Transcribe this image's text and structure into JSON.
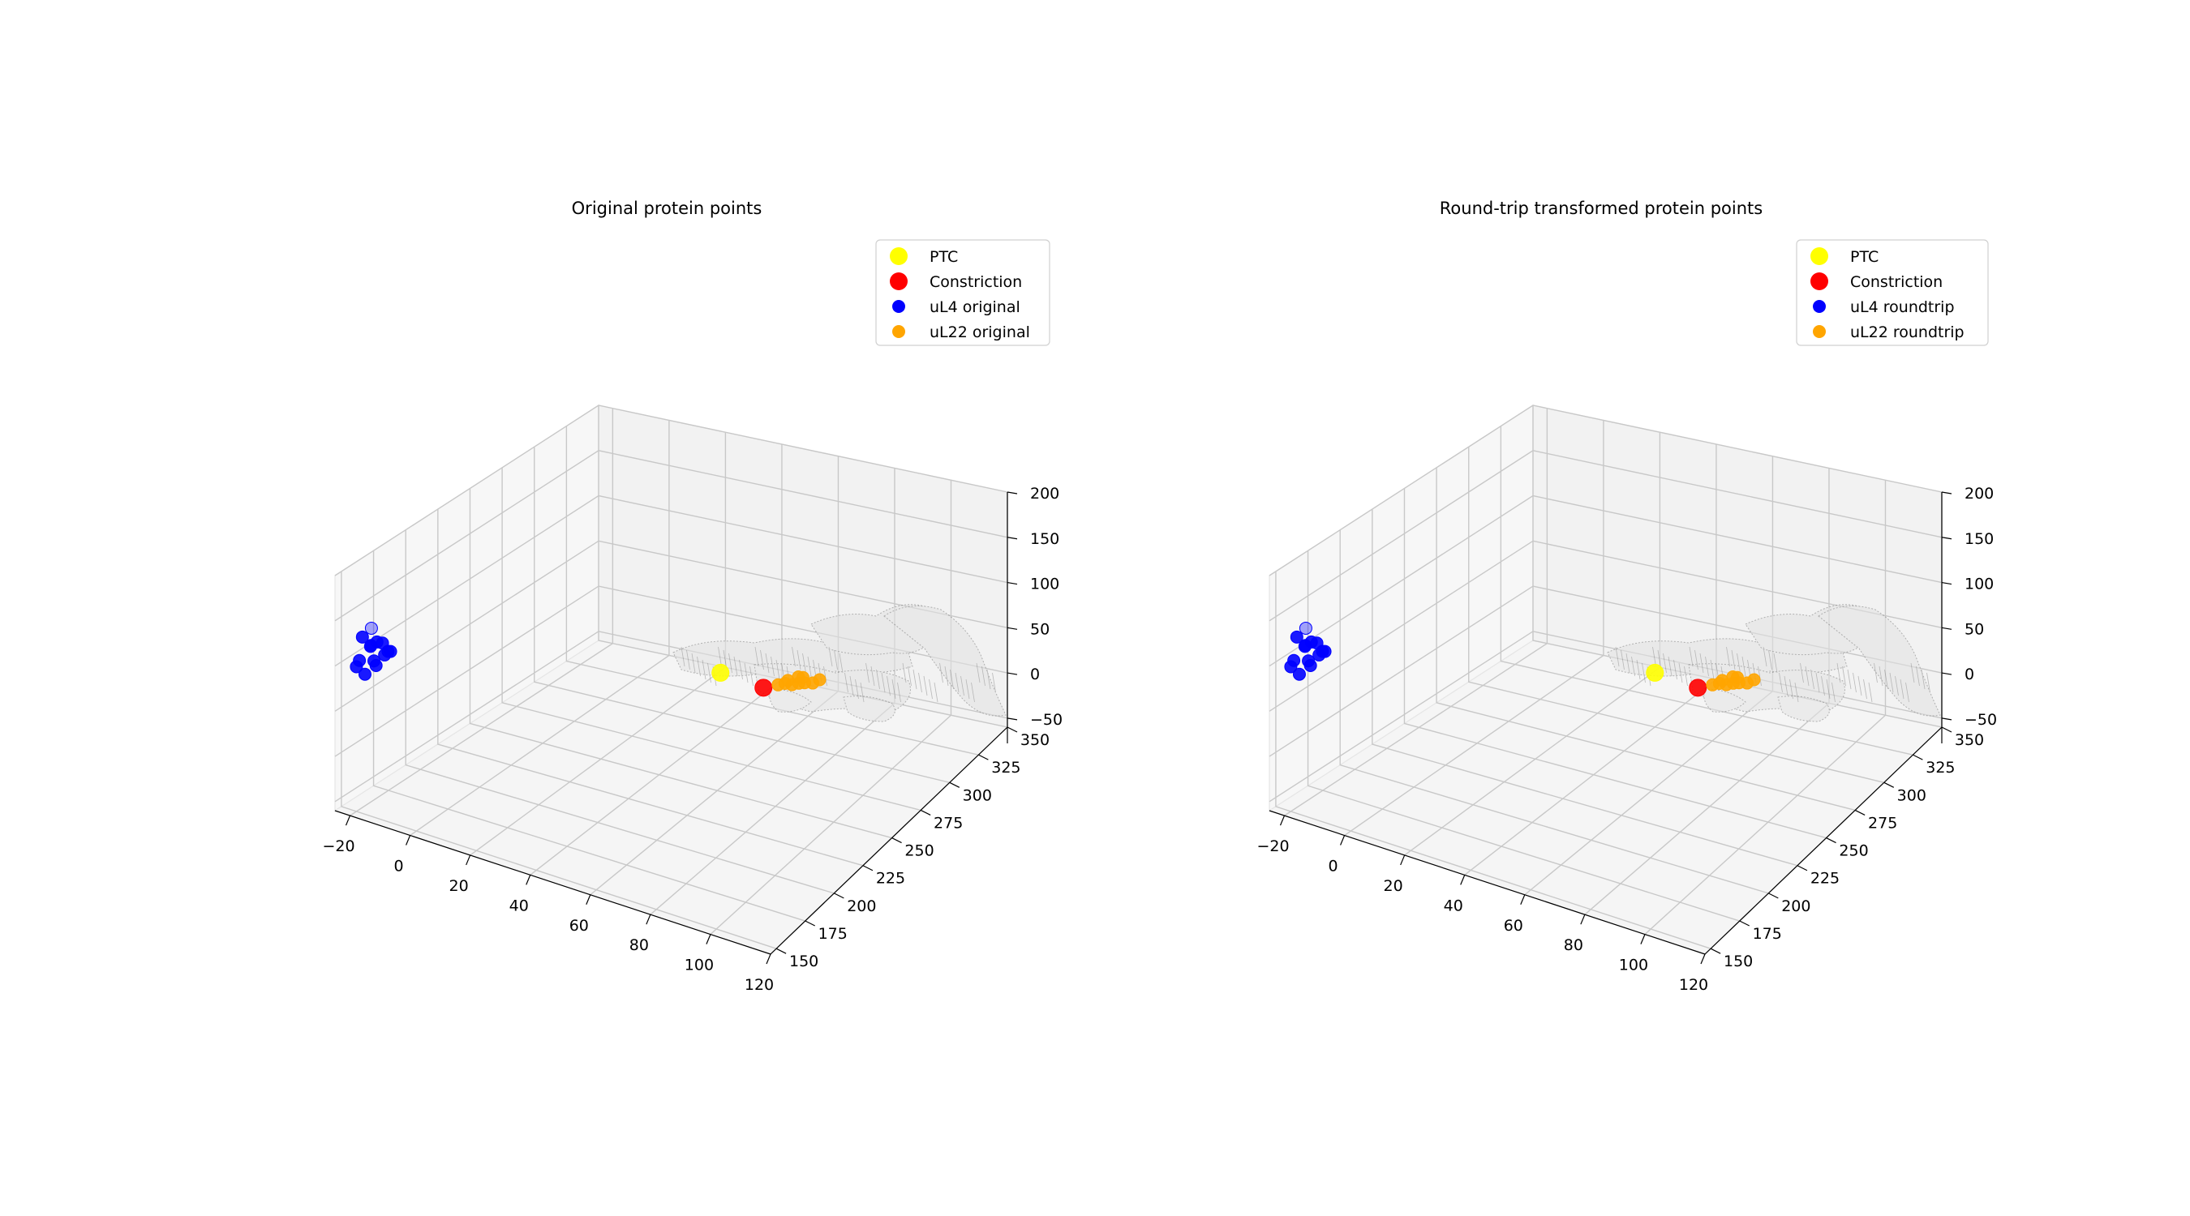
{
  "chart_data": [
    {
      "type": "scatter3d",
      "title": "Original protein points",
      "xlabel": "",
      "ylabel": "",
      "zlabel": "",
      "x_ticks": [
        "−20",
        "0",
        "20",
        "40",
        "60",
        "80",
        "100",
        "120"
      ],
      "y_ticks": [
        "150",
        "175",
        "200",
        "225",
        "250",
        "275",
        "300",
        "325",
        "350"
      ],
      "z_ticks": [
        "−50",
        "0",
        "50",
        "100",
        "150",
        "200"
      ],
      "xlim": [
        -25,
        120
      ],
      "ylim": [
        145,
        350
      ],
      "zlim": [
        -60,
        200
      ],
      "grid": true,
      "legend": "top-right",
      "legend_entries": [
        {
          "label": "PTC",
          "color": "#ffff00",
          "size": "large"
        },
        {
          "label": "Constriction",
          "color": "#ff0000",
          "size": "large"
        },
        {
          "label": "uL4 original",
          "color": "#0000ff",
          "size": "small"
        },
        {
          "label": "uL22 original",
          "color": "#ffa500",
          "size": "small"
        }
      ],
      "series": [
        {
          "name": "PTC",
          "color": "#ffff00",
          "points": [
            [
              40,
              300,
              0
            ]
          ]
        },
        {
          "name": "Constriction",
          "color": "#ff0000",
          "points": [
            [
              55,
              300,
              -5
            ]
          ]
        },
        {
          "name": "uL4 original",
          "color": "#0000ff",
          "points": [
            [
              -15,
              150,
              148
            ],
            [
              -18,
              150,
              135
            ],
            [
              -14,
              152,
              132
            ],
            [
              -16,
              152,
              126
            ],
            [
              -13,
              154,
              130
            ],
            [
              -12,
              156,
              120
            ],
            [
              -17,
              154,
              122
            ],
            [
              -19,
              150,
              108
            ],
            [
              -20,
              150,
              100
            ],
            [
              -15,
              152,
              110
            ],
            [
              -16,
              156,
              100
            ],
            [
              -12,
              158,
              118
            ],
            [
              -14,
              158,
              112
            ],
            [
              -18,
              152,
              92
            ]
          ]
        },
        {
          "name": "uL22 original",
          "color": "#ffa500",
          "points": [
            [
              58,
              305,
              -5
            ],
            [
              60,
              306,
              -3
            ],
            [
              62,
              307,
              -4
            ],
            [
              64,
              308,
              -2
            ],
            [
              66,
              308,
              0
            ],
            [
              63,
              310,
              2
            ],
            [
              68,
              310,
              -1
            ],
            [
              70,
              311,
              3
            ],
            [
              61,
              306,
              1
            ],
            [
              65,
              309,
              4
            ]
          ]
        },
        {
          "name": "mesh",
          "color": "#808080",
          "points": []
        }
      ]
    },
    {
      "type": "scatter3d",
      "title": "Round-trip transformed protein points",
      "xlabel": "",
      "ylabel": "",
      "zlabel": "",
      "x_ticks": [
        "−20",
        "0",
        "20",
        "40",
        "60",
        "80",
        "100",
        "120"
      ],
      "y_ticks": [
        "150",
        "175",
        "200",
        "225",
        "250",
        "275",
        "300",
        "325",
        "350"
      ],
      "z_ticks": [
        "−50",
        "0",
        "50",
        "100",
        "150",
        "200"
      ],
      "xlim": [
        -25,
        120
      ],
      "ylim": [
        145,
        350
      ],
      "zlim": [
        -60,
        200
      ],
      "grid": true,
      "legend": "top-right",
      "legend_entries": [
        {
          "label": "PTC",
          "color": "#ffff00",
          "size": "large"
        },
        {
          "label": "Constriction",
          "color": "#ff0000",
          "size": "large"
        },
        {
          "label": "uL4 roundtrip",
          "color": "#0000ff",
          "size": "small"
        },
        {
          "label": "uL22 roundtrip",
          "color": "#ffa500",
          "size": "small"
        }
      ],
      "series": [
        {
          "name": "PTC",
          "color": "#ffff00",
          "points": [
            [
              40,
              300,
              0
            ]
          ]
        },
        {
          "name": "Constriction",
          "color": "#ff0000",
          "points": [
            [
              55,
              300,
              -5
            ]
          ]
        },
        {
          "name": "uL4 roundtrip",
          "color": "#0000ff",
          "points": [
            [
              -15,
              150,
              148
            ],
            [
              -18,
              150,
              135
            ],
            [
              -14,
              152,
              132
            ],
            [
              -16,
              152,
              126
            ],
            [
              -13,
              154,
              130
            ],
            [
              -12,
              156,
              120
            ],
            [
              -17,
              154,
              122
            ],
            [
              -19,
              150,
              108
            ],
            [
              -20,
              150,
              100
            ],
            [
              -15,
              152,
              110
            ],
            [
              -16,
              156,
              100
            ],
            [
              -12,
              158,
              118
            ],
            [
              -14,
              158,
              112
            ],
            [
              -18,
              152,
              92
            ]
          ]
        },
        {
          "name": "uL22 roundtrip",
          "color": "#ffa500",
          "points": [
            [
              58,
              305,
              -5
            ],
            [
              60,
              306,
              -3
            ],
            [
              62,
              307,
              -4
            ],
            [
              64,
              308,
              -2
            ],
            [
              66,
              308,
              0
            ],
            [
              63,
              310,
              2
            ],
            [
              68,
              310,
              -1
            ],
            [
              70,
              311,
              3
            ],
            [
              61,
              306,
              1
            ],
            [
              65,
              309,
              4
            ]
          ]
        },
        {
          "name": "mesh",
          "color": "#808080",
          "points": []
        }
      ]
    }
  ]
}
